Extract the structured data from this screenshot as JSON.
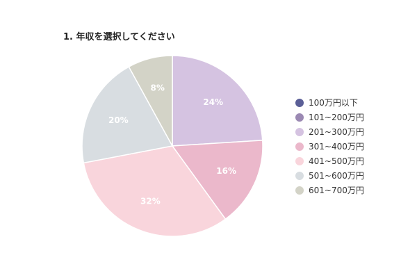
{
  "chart_data": {
    "type": "pie",
    "title": "1. 年収を選択してください",
    "categories": [
      "100万円以下",
      "101~200万円",
      "201~300万円",
      "301~400万円",
      "401~500万円",
      "501~600万円",
      "601~700万円"
    ],
    "values": [
      0,
      0,
      24,
      16,
      32,
      20,
      8
    ],
    "data_labels": [
      "",
      "",
      "24%",
      "16%",
      "32%",
      "20%",
      "8%"
    ],
    "colors": [
      "#5b5f97",
      "#9b89b3",
      "#d5c3e1",
      "#ebb8cb",
      "#f9d5dc",
      "#d8dde1",
      "#d3d3c7"
    ],
    "legend_position": "right",
    "start_angle": "12 o'clock, clockwise"
  }
}
